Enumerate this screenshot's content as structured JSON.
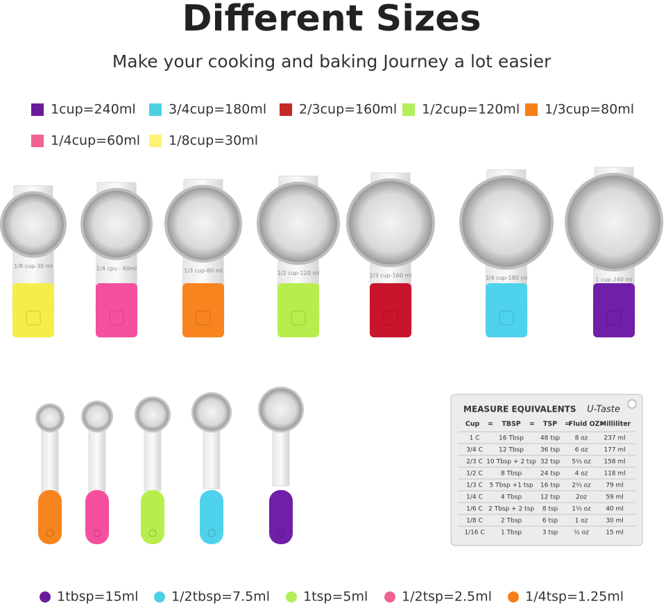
{
  "header": {
    "title": "Different Sizes",
    "subtitle": "Make your cooking and baking Journey a lot easier"
  },
  "cup_legend": [
    {
      "label": "1cup=240ml",
      "color": "#6a1b9a"
    },
    {
      "label": "3/4cup=180ml",
      "color": "#4dd0e1"
    },
    {
      "label": "2/3cup=160ml",
      "color": "#c62828"
    },
    {
      "label": "1/2cup=120ml",
      "color": "#b2ef5b"
    },
    {
      "label": "1/3cup=80ml",
      "color": "#f57f17"
    },
    {
      "label": "1/4cup=60ml",
      "color": "#f06292"
    },
    {
      "label": "1/8cup=30ml",
      "color": "#fff176"
    }
  ],
  "cups": [
    {
      "label": "1/8 cup-30 ml",
      "color": "#f4ee4a"
    },
    {
      "label": "1/4 cpu - 60ml",
      "color": "#f54fa0"
    },
    {
      "label": "1/3 cup-80 ml",
      "color": "#f7841e"
    },
    {
      "label": "1/2 cup-120 ml",
      "color": "#b7ee4e"
    },
    {
      "label": "2/3 cup-160 ml",
      "color": "#c8142c"
    },
    {
      "label": "3/4 cup-180 ml",
      "color": "#4fd3ec"
    },
    {
      "label": "1 cup-240 ml",
      "color": "#6f1fa8"
    }
  ],
  "spoons": [
    {
      "color": "#f7841e"
    },
    {
      "color": "#f54fa0"
    },
    {
      "color": "#b7ee4e"
    },
    {
      "color": "#4fd3ec"
    },
    {
      "color": "#6f1fa8"
    }
  ],
  "card": {
    "title": "MEASURE EQUIVALENTS",
    "brand": "U-Taste",
    "headers": [
      "Cup",
      "=",
      "TBSP",
      "=",
      "TSP",
      "=",
      "Fluid OZ",
      "=",
      "Milliliter"
    ],
    "rows": [
      [
        "1 C",
        "16 Tbsp",
        "48 tsp",
        "8 oz",
        "237 ml"
      ],
      [
        "3/4 C",
        "12 Tbsp",
        "36 tsp",
        "6 oz",
        "177 ml"
      ],
      [
        "2/3 C",
        "10 Tbsp + 2 tsp",
        "32 tsp",
        "5⅓ oz",
        "158 ml"
      ],
      [
        "1/2 C",
        "8 Tbsp",
        "24 tsp",
        "4 oz",
        "118 ml"
      ],
      [
        "1/3 C",
        "5 Tbsp +1 tsp",
        "16 tsp",
        "2⅔ oz",
        "79 ml"
      ],
      [
        "1/4 C",
        "4 Tbsp",
        "12 tsp",
        "2oz",
        "59 ml"
      ],
      [
        "1/6 C",
        "2 Tbsp + 2 tsp",
        "8 tsp",
        "1⅓ oz",
        "40 ml"
      ],
      [
        "1/8 C",
        "2 Tbsp",
        "6 tsp",
        "1 oz",
        "30 ml"
      ],
      [
        "1/16 C",
        "1 Tbsp",
        "3 tsp",
        "½ oz",
        "15 ml"
      ]
    ]
  },
  "spoon_legend": [
    {
      "label": "1tbsp=15ml",
      "color": "#6a1b9a"
    },
    {
      "label": "1/2tbsp=7.5ml",
      "color": "#4dd0e1"
    },
    {
      "label": "1tsp=5ml",
      "color": "#b2ef5b"
    },
    {
      "label": "1/2tsp=2.5ml",
      "color": "#f06292"
    },
    {
      "label": "1/4tsp=1.25ml",
      "color": "#f57f17"
    }
  ]
}
